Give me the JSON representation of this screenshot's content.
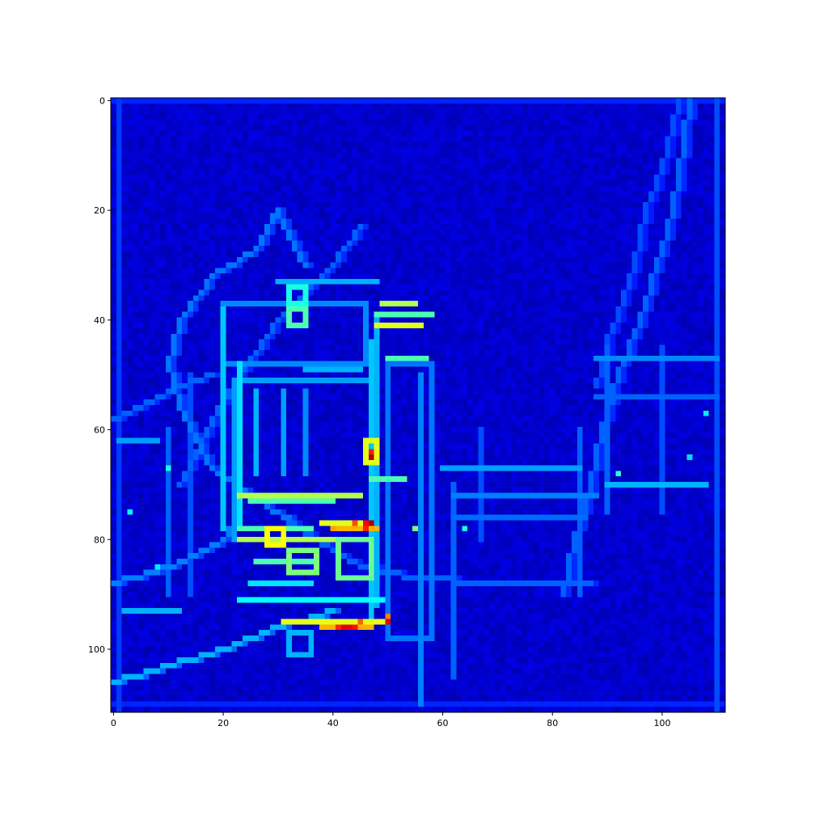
{
  "chart_data": {
    "type": "heatmap",
    "title": "",
    "xlabel": "",
    "ylabel": "",
    "colormap": "jet",
    "colormap_colors": [
      "#00007f",
      "#0000ff",
      "#007fff",
      "#00ffff",
      "#7fff7f",
      "#ffff00",
      "#ff7f00",
      "#ff0000",
      "#7f0000"
    ],
    "grid_shape": [
      112,
      112
    ],
    "xlim": [
      -0.5,
      111.5
    ],
    "ylim": [
      111.5,
      -0.5
    ],
    "y_axis_inverted": true,
    "grid": false,
    "legend": "none",
    "x_ticks": [
      0,
      20,
      40,
      60,
      80,
      100
    ],
    "y_ticks": [
      0,
      20,
      40,
      60,
      80,
      100
    ],
    "x_tick_labels": [
      "0",
      "20",
      "40",
      "60",
      "80",
      "100"
    ],
    "y_tick_labels": [
      "0",
      "20",
      "40",
      "60",
      "80",
      "100"
    ],
    "background_value": 0.05,
    "features": [
      {
        "kind": "hline",
        "row": 0,
        "c0": 0,
        "c1": 111,
        "v": 0.16
      },
      {
        "kind": "hline",
        "row": 110,
        "c0": 0,
        "c1": 111,
        "v": 0.16
      },
      {
        "kind": "vline",
        "col": 1,
        "r0": 0,
        "r1": 111,
        "v": 0.18
      },
      {
        "kind": "vline",
        "col": 110,
        "r0": 0,
        "r1": 111,
        "v": 0.2
      },
      {
        "kind": "curve",
        "pts": [
          [
            35,
            30
          ],
          [
            32,
            25
          ],
          [
            30,
            20
          ],
          [
            26,
            27
          ],
          [
            18,
            32
          ],
          [
            12,
            40
          ],
          [
            10,
            48
          ],
          [
            12,
            56
          ],
          [
            14,
            60
          ],
          [
            16,
            64
          ],
          [
            18,
            67
          ],
          [
            22,
            70
          ],
          [
            28,
            74
          ],
          [
            32,
            76
          ]
        ],
        "v": 0.24
      },
      {
        "kind": "curve",
        "pts": [
          [
            28,
            74
          ],
          [
            34,
            78
          ],
          [
            40,
            82
          ],
          [
            46,
            85
          ],
          [
            55,
            87
          ],
          [
            70,
            88
          ],
          [
            87,
            88
          ]
        ],
        "v": 0.22
      },
      {
        "kind": "curve",
        "pts": [
          [
            45,
            23
          ],
          [
            40,
            30
          ],
          [
            30,
            40
          ],
          [
            20,
            55
          ],
          [
            12,
            70
          ]
        ],
        "v": 0.22
      },
      {
        "kind": "curve",
        "pts": [
          [
            105,
            0
          ],
          [
            102,
            20
          ],
          [
            96,
            40
          ],
          [
            92,
            50
          ],
          [
            89,
            60
          ],
          [
            87,
            70
          ],
          [
            84,
            80
          ],
          [
            82,
            90
          ]
        ],
        "v": 0.22
      },
      {
        "kind": "curve",
        "pts": [
          [
            103,
            0
          ],
          [
            100,
            12
          ],
          [
            97,
            20
          ],
          [
            95,
            30
          ],
          [
            93,
            36
          ],
          [
            90,
            44
          ],
          [
            88,
            52
          ]
        ],
        "v": 0.2
      },
      {
        "kind": "rect",
        "r0": 37,
        "r1": 48,
        "c0": 20,
        "c1": 46,
        "v": 0.26
      },
      {
        "kind": "rect",
        "r0": 51,
        "r1": 80,
        "c0": 22,
        "c1": 48,
        "v": 0.28
      },
      {
        "kind": "rect",
        "r0": 48,
        "r1": 98,
        "c0": 50,
        "c1": 58,
        "v": 0.24
      },
      {
        "kind": "hline",
        "row": 33,
        "c0": 30,
        "c1": 48,
        "v": 0.3
      },
      {
        "kind": "hline",
        "row": 72,
        "c0": 23,
        "c1": 45,
        "v": 0.55
      },
      {
        "kind": "hline",
        "row": 73,
        "c0": 25,
        "c1": 40,
        "v": 0.45
      },
      {
        "kind": "hline",
        "row": 69,
        "c0": 47,
        "c1": 53,
        "v": 0.45
      },
      {
        "kind": "hline",
        "row": 37,
        "c0": 49,
        "c1": 55,
        "v": 0.55
      },
      {
        "kind": "hline",
        "row": 39,
        "c0": 48,
        "c1": 58,
        "v": 0.45
      },
      {
        "kind": "hline",
        "row": 41,
        "c0": 48,
        "c1": 56,
        "v": 0.6
      },
      {
        "kind": "hline",
        "row": 47,
        "c0": 50,
        "c1": 57,
        "v": 0.45
      },
      {
        "kind": "rect",
        "r0": 38,
        "r1": 41,
        "c0": 32,
        "c1": 35,
        "v": 0.45
      },
      {
        "kind": "rect",
        "r0": 34,
        "r1": 37,
        "c0": 32,
        "c1": 35,
        "v": 0.4
      },
      {
        "kind": "hline",
        "row": 49,
        "c0": 35,
        "c1": 45,
        "v": 0.3
      },
      {
        "kind": "vline",
        "col": 23,
        "r0": 48,
        "r1": 78,
        "v": 0.35
      },
      {
        "kind": "vline",
        "col": 20,
        "r0": 38,
        "r1": 78,
        "v": 0.32
      },
      {
        "kind": "vline",
        "col": 47,
        "r0": 44,
        "r1": 95,
        "v": 0.32
      },
      {
        "kind": "vline",
        "col": 48,
        "r0": 40,
        "r1": 92,
        "v": 0.3
      },
      {
        "kind": "vline",
        "col": 26,
        "r0": 53,
        "r1": 68,
        "v": 0.3
      },
      {
        "kind": "vline",
        "col": 31,
        "r0": 53,
        "r1": 68,
        "v": 0.28
      },
      {
        "kind": "vline",
        "col": 35,
        "r0": 53,
        "r1": 68,
        "v": 0.26
      },
      {
        "kind": "vline",
        "col": 56,
        "r0": 50,
        "r1": 110,
        "v": 0.25
      },
      {
        "kind": "rect",
        "r0": 62,
        "r1": 66,
        "c0": 46,
        "c1": 48,
        "v": 0.6
      },
      {
        "kind": "dot",
        "row": 64,
        "col": 47,
        "v": 0.85
      },
      {
        "kind": "dot",
        "row": 65,
        "col": 47,
        "v": 0.95
      },
      {
        "kind": "hline",
        "row": 78,
        "c0": 23,
        "c1": 36,
        "v": 0.45
      },
      {
        "kind": "hline",
        "row": 80,
        "c0": 23,
        "c1": 40,
        "v": 0.55
      },
      {
        "kind": "rect",
        "r0": 78,
        "r1": 81,
        "c0": 28,
        "c1": 31,
        "v": 0.62
      },
      {
        "kind": "hline",
        "row": 77,
        "c0": 38,
        "c1": 47,
        "v": 0.6
      },
      {
        "kind": "hline",
        "row": 78,
        "c0": 40,
        "c1": 48,
        "v": 0.7
      },
      {
        "kind": "dot",
        "row": 77,
        "col": 46,
        "v": 0.88
      },
      {
        "kind": "dot",
        "row": 78,
        "col": 46,
        "v": 0.85
      },
      {
        "kind": "dot",
        "row": 77,
        "col": 44,
        "v": 0.8
      },
      {
        "kind": "dot",
        "row": 78,
        "col": 40,
        "v": 0.72
      },
      {
        "kind": "dot",
        "row": 77,
        "col": 47,
        "v": 0.97
      },
      {
        "kind": "rect",
        "r0": 80,
        "r1": 87,
        "c0": 41,
        "c1": 47,
        "v": 0.48
      },
      {
        "kind": "rect",
        "r0": 82,
        "r1": 86,
        "c0": 32,
        "c1": 37,
        "v": 0.5
      },
      {
        "kind": "hline",
        "row": 84,
        "c0": 26,
        "c1": 37,
        "v": 0.45
      },
      {
        "kind": "hline",
        "row": 88,
        "c0": 25,
        "c1": 36,
        "v": 0.35
      },
      {
        "kind": "hline",
        "row": 91,
        "c0": 23,
        "c1": 49,
        "v": 0.38
      },
      {
        "kind": "hline",
        "row": 95,
        "c0": 31,
        "c1": 50,
        "v": 0.6
      },
      {
        "kind": "hline",
        "row": 96,
        "c0": 38,
        "c1": 47,
        "v": 0.7
      },
      {
        "kind": "dot",
        "row": 96,
        "col": 41,
        "v": 0.84
      },
      {
        "kind": "dot",
        "row": 96,
        "col": 42,
        "v": 0.9
      },
      {
        "kind": "dot",
        "row": 96,
        "col": 43,
        "v": 0.9
      },
      {
        "kind": "dot",
        "row": 96,
        "col": 44,
        "v": 0.86
      },
      {
        "kind": "dot",
        "row": 95,
        "col": 45,
        "v": 0.78
      },
      {
        "kind": "dot",
        "row": 95,
        "col": 50,
        "v": 0.9
      },
      {
        "kind": "dot",
        "row": 94,
        "col": 50,
        "v": 0.75
      },
      {
        "kind": "rect",
        "r0": 97,
        "r1": 101,
        "c0": 32,
        "c1": 36,
        "v": 0.3
      },
      {
        "kind": "hline",
        "row": 67,
        "c0": 60,
        "c1": 85,
        "v": 0.28
      },
      {
        "kind": "hline",
        "row": 72,
        "c0": 62,
        "c1": 88,
        "v": 0.25
      },
      {
        "kind": "hline",
        "row": 76,
        "c0": 62,
        "c1": 86,
        "v": 0.23
      },
      {
        "kind": "hline",
        "row": 47,
        "c0": 88,
        "c1": 110,
        "v": 0.26
      },
      {
        "kind": "hline",
        "row": 54,
        "c0": 88,
        "c1": 110,
        "v": 0.22
      },
      {
        "kind": "hline",
        "row": 70,
        "c0": 90,
        "c1": 108,
        "v": 0.3
      },
      {
        "kind": "hline",
        "row": 62,
        "c0": 1,
        "c1": 8,
        "v": 0.28
      },
      {
        "kind": "hline",
        "row": 93,
        "c0": 2,
        "c1": 12,
        "v": 0.3
      },
      {
        "kind": "curve",
        "pts": [
          [
            0,
            106
          ],
          [
            10,
            103
          ],
          [
            20,
            100
          ],
          [
            30,
            96
          ],
          [
            40,
            93
          ]
        ],
        "v": 0.3
      },
      {
        "kind": "curve",
        "pts": [
          [
            0,
            88
          ],
          [
            10,
            85
          ],
          [
            20,
            80
          ],
          [
            22,
            76
          ]
        ],
        "v": 0.25
      },
      {
        "kind": "curve",
        "pts": [
          [
            0,
            58
          ],
          [
            6,
            55
          ],
          [
            12,
            52
          ],
          [
            18,
            50
          ]
        ],
        "v": 0.22
      },
      {
        "kind": "vline",
        "col": 10,
        "r0": 60,
        "r1": 90,
        "v": 0.22
      },
      {
        "kind": "vline",
        "col": 14,
        "r0": 50,
        "r1": 90,
        "v": 0.2
      },
      {
        "kind": "vline",
        "col": 62,
        "r0": 70,
        "r1": 105,
        "v": 0.22
      },
      {
        "kind": "vline",
        "col": 67,
        "r0": 60,
        "r1": 80,
        "v": 0.2
      },
      {
        "kind": "vline",
        "col": 85,
        "r0": 60,
        "r1": 90,
        "v": 0.22
      },
      {
        "kind": "vline",
        "col": 90,
        "r0": 45,
        "r1": 75,
        "v": 0.22
      },
      {
        "kind": "vline",
        "col": 100,
        "r0": 45,
        "r1": 75,
        "v": 0.2
      },
      {
        "kind": "dot",
        "row": 68,
        "col": 92,
        "v": 0.42
      },
      {
        "kind": "dot",
        "row": 78,
        "col": 55,
        "v": 0.5
      },
      {
        "kind": "dot",
        "row": 78,
        "col": 64,
        "v": 0.4
      },
      {
        "kind": "dot",
        "row": 67,
        "col": 10,
        "v": 0.4
      },
      {
        "kind": "dot",
        "row": 75,
        "col": 3,
        "v": 0.38
      },
      {
        "kind": "dot",
        "row": 85,
        "col": 8,
        "v": 0.36
      },
      {
        "kind": "dot",
        "row": 57,
        "col": 108,
        "v": 0.36
      },
      {
        "kind": "dot",
        "row": 65,
        "col": 105,
        "v": 0.34
      }
    ]
  }
}
